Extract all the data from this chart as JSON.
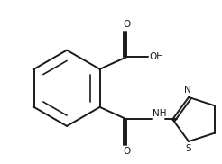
{
  "bg_color": "#ffffff",
  "line_color": "#1a1a1a",
  "line_width": 1.4,
  "font_size": 7.5,
  "xlim": [
    0,
    10
  ],
  "ylim": [
    0,
    7.5
  ]
}
